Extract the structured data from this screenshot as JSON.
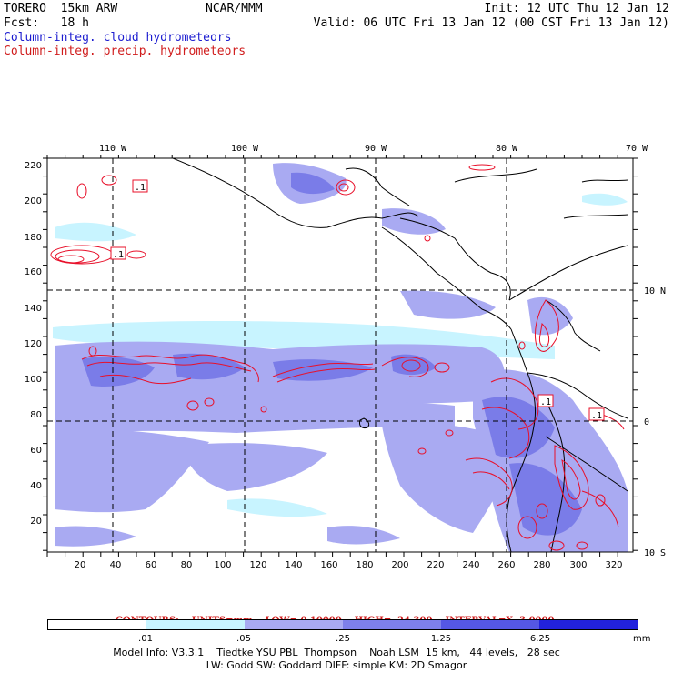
{
  "header": {
    "model_name": "TORERO  15km ARW",
    "center": "NCAR/MMM",
    "init": "Init: 12 UTC Thu 12 Jan 12",
    "fcst": "Fcst:   18 h",
    "valid": "Valid: 06 UTC Fri 13 Jan 12 (00 CST Fri 13 Jan 12)",
    "field1": "Column-integ. cloud hydrometeors",
    "field2": "Column-integ. precip. hydrometeors"
  },
  "map": {
    "lon_labels": [
      "110 W",
      "100 W",
      "90 W",
      "80 W",
      "70 W"
    ],
    "lat_labels": [
      "10 N",
      "0",
      "10 S"
    ],
    "y_ticks": [
      "220",
      "200",
      "180",
      "160",
      "140",
      "120",
      "100",
      "80",
      "60",
      "40",
      "20"
    ],
    "x_ticks": [
      "20",
      "40",
      "60",
      "80",
      "100",
      "120",
      "140",
      "160",
      "180",
      "200",
      "220",
      "240",
      "260",
      "280",
      "300",
      "320"
    ],
    "low_labels": [
      ".1",
      ".1",
      ".1",
      ".1"
    ],
    "colors": {
      "fill_light": "#c8f4ff",
      "fill_mid": "#a9aaf2",
      "fill_dark": "#7a7ce8",
      "contour": "#e8102a",
      "border": "#000000"
    }
  },
  "contours": {
    "label": "CONTOURS:",
    "units": "UNITS=mm",
    "low": "LOW= 0.10000",
    "high": "HIGH=  24.300",
    "interval": "INTERVAL=X  3.0000"
  },
  "colorbar": {
    "tick_labels": [
      ".01",
      ".05",
      ".25",
      "1.25",
      "6.25"
    ],
    "units": "mm",
    "colors": [
      "#ffffff",
      "#c8f4ff",
      "#a9aaf2",
      "#7e80ea",
      "#5557e4",
      "#2222dd"
    ]
  },
  "model_info": {
    "line1": "Model Info: V3.3.1    Tiedtke YSU PBL  Thompson    Noah LSM  15 km,   44 levels,   28 sec",
    "line2": "LW: Godd SW: Goddard DIFF: simple KM: 2D Smagor"
  }
}
